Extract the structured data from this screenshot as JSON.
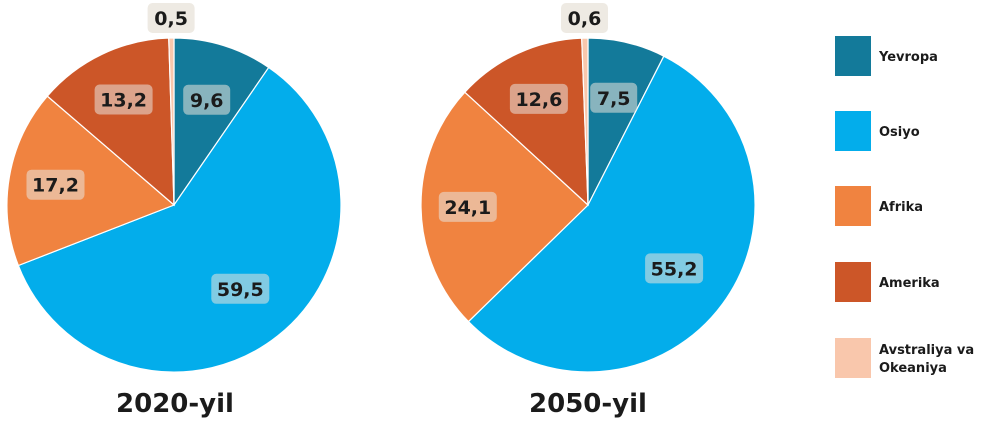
{
  "colors": {
    "Yevropa": "#137a9a",
    "Osiyo": "#03adeb",
    "Afrika": "#f08340",
    "Amerika": "#cc5628",
    "Avstraliya va Okeaniya": "#f9c7ac"
  },
  "legend": [
    {
      "name": "Yevropa",
      "lines": [
        "Yevropa"
      ]
    },
    {
      "name": "Osiyo",
      "lines": [
        "Osiyo"
      ]
    },
    {
      "name": "Afrika",
      "lines": [
        "Afrika"
      ]
    },
    {
      "name": "Amerika",
      "lines": [
        "Amerika"
      ]
    },
    {
      "name": "Avstraliya va Okeaniya",
      "lines": [
        "Avstraliya va",
        "Okeaniya"
      ]
    }
  ],
  "chart_data": [
    {
      "type": "pie",
      "title": "2020-yil",
      "categories": [
        "Yevropa",
        "Osiyo",
        "Afrika",
        "Amerika",
        "Avstraliya va Okeaniya"
      ],
      "values": [
        9.6,
        59.5,
        17.2,
        13.2,
        0.5
      ],
      "labels": [
        "9,6",
        "59,5",
        "17,2",
        "13,2",
        "0,5"
      ]
    },
    {
      "type": "pie",
      "title": "2050-yil",
      "categories": [
        "Yevropa",
        "Osiyo",
        "Afrika",
        "Amerika",
        "Avstraliya va Okeaniya"
      ],
      "values": [
        7.5,
        55.2,
        24.1,
        12.6,
        0.6
      ],
      "labels": [
        "7,5",
        "55,2",
        "24,1",
        "12,6",
        "0,6"
      ]
    }
  ]
}
